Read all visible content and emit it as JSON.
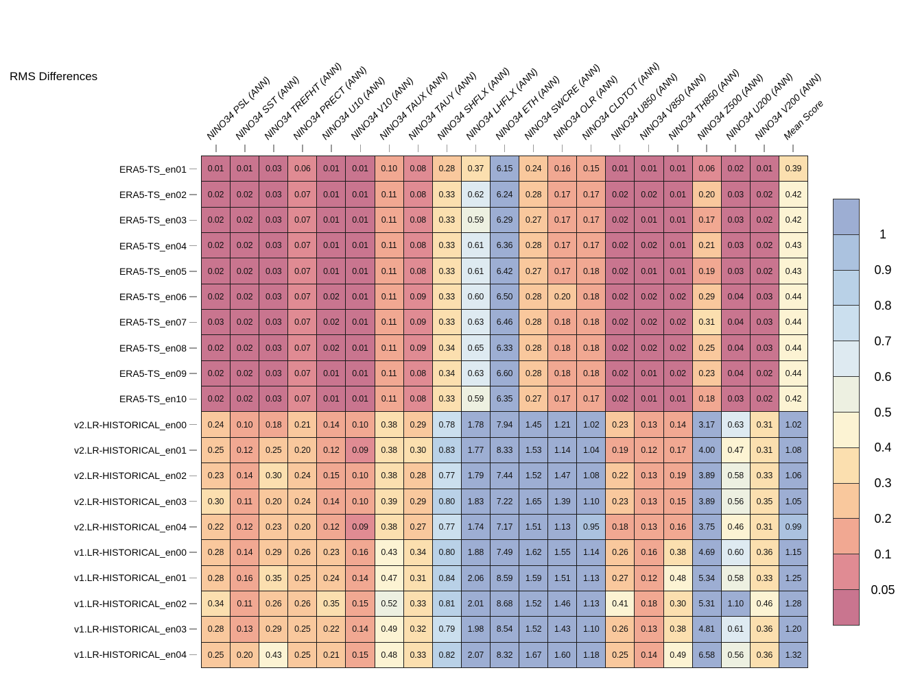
{
  "chart_data": {
    "type": "heatmap",
    "title": "RMS Differences",
    "columns": [
      "NINO34 PSL (ANN)",
      "NINO34 SST (ANN)",
      "NINO34 TREFHT (ANN)",
      "NINO34 PRECT (ANN)",
      "NINO34 U10 (ANN)",
      "NINO34 V10 (ANN)",
      "NINO34 TAUX (ANN)",
      "NINO34 TAUY (ANN)",
      "NINO34 SHFLX (ANN)",
      "NINO34 LHFLX (ANN)",
      "NINO34 ETH (ANN)",
      "NINO34 SWCRE (ANN)",
      "NINO34 OLR (ANN)",
      "NINO34 CLDTOT (ANN)",
      "NINO34 U850 (ANN)",
      "NINO34 V850 (ANN)",
      "NINO34 TH850 (ANN)",
      "NINO34 Z500 (ANN)",
      "NINO34 U200 (ANN)",
      "NINO34 V200 (ANN)",
      "Mean Score"
    ],
    "rows": [
      {
        "label": "ERA5-TS_en01",
        "values": [
          "0.01",
          "0.01",
          "0.03",
          "0.06",
          "0.01",
          "0.01",
          "0.10",
          "0.08",
          "0.28",
          "0.37",
          "6.15",
          "0.24",
          "0.16",
          "0.15",
          "0.01",
          "0.01",
          "0.01",
          "0.06",
          "0.02",
          "0.01",
          "0.39"
        ]
      },
      {
        "label": "ERA5-TS_en02",
        "values": [
          "0.02",
          "0.02",
          "0.03",
          "0.07",
          "0.01",
          "0.01",
          "0.11",
          "0.08",
          "0.33",
          "0.62",
          "6.24",
          "0.28",
          "0.17",
          "0.17",
          "0.02",
          "0.02",
          "0.01",
          "0.20",
          "0.03",
          "0.02",
          "0.42"
        ]
      },
      {
        "label": "ERA5-TS_en03",
        "values": [
          "0.02",
          "0.02",
          "0.03",
          "0.07",
          "0.01",
          "0.01",
          "0.11",
          "0.08",
          "0.33",
          "0.59",
          "6.29",
          "0.27",
          "0.17",
          "0.17",
          "0.02",
          "0.01",
          "0.01",
          "0.17",
          "0.03",
          "0.02",
          "0.42"
        ]
      },
      {
        "label": "ERA5-TS_en04",
        "values": [
          "0.02",
          "0.02",
          "0.03",
          "0.07",
          "0.01",
          "0.01",
          "0.11",
          "0.08",
          "0.33",
          "0.61",
          "6.36",
          "0.28",
          "0.17",
          "0.17",
          "0.02",
          "0.02",
          "0.01",
          "0.21",
          "0.03",
          "0.02",
          "0.43"
        ]
      },
      {
        "label": "ERA5-TS_en05",
        "values": [
          "0.02",
          "0.02",
          "0.03",
          "0.07",
          "0.01",
          "0.01",
          "0.11",
          "0.08",
          "0.33",
          "0.61",
          "6.42",
          "0.27",
          "0.17",
          "0.18",
          "0.02",
          "0.01",
          "0.01",
          "0.19",
          "0.03",
          "0.02",
          "0.43"
        ]
      },
      {
        "label": "ERA5-TS_en06",
        "values": [
          "0.02",
          "0.02",
          "0.03",
          "0.07",
          "0.02",
          "0.01",
          "0.11",
          "0.09",
          "0.33",
          "0.60",
          "6.50",
          "0.28",
          "0.20",
          "0.18",
          "0.02",
          "0.02",
          "0.02",
          "0.29",
          "0.04",
          "0.03",
          "0.44"
        ]
      },
      {
        "label": "ERA5-TS_en07",
        "values": [
          "0.03",
          "0.02",
          "0.03",
          "0.07",
          "0.02",
          "0.01",
          "0.11",
          "0.09",
          "0.33",
          "0.63",
          "6.46",
          "0.28",
          "0.18",
          "0.18",
          "0.02",
          "0.02",
          "0.02",
          "0.31",
          "0.04",
          "0.03",
          "0.44"
        ]
      },
      {
        "label": "ERA5-TS_en08",
        "values": [
          "0.02",
          "0.02",
          "0.03",
          "0.07",
          "0.02",
          "0.01",
          "0.11",
          "0.09",
          "0.34",
          "0.65",
          "6.33",
          "0.28",
          "0.18",
          "0.18",
          "0.02",
          "0.02",
          "0.02",
          "0.25",
          "0.04",
          "0.03",
          "0.44"
        ]
      },
      {
        "label": "ERA5-TS_en09",
        "values": [
          "0.02",
          "0.02",
          "0.03",
          "0.07",
          "0.01",
          "0.01",
          "0.11",
          "0.08",
          "0.34",
          "0.63",
          "6.60",
          "0.28",
          "0.18",
          "0.18",
          "0.02",
          "0.01",
          "0.02",
          "0.23",
          "0.04",
          "0.02",
          "0.44"
        ]
      },
      {
        "label": "ERA5-TS_en10",
        "values": [
          "0.02",
          "0.02",
          "0.03",
          "0.07",
          "0.01",
          "0.01",
          "0.11",
          "0.08",
          "0.33",
          "0.59",
          "6.35",
          "0.27",
          "0.17",
          "0.17",
          "0.02",
          "0.01",
          "0.01",
          "0.18",
          "0.03",
          "0.02",
          "0.42"
        ]
      },
      {
        "label": "v2.LR-HISTORICAL_en00",
        "values": [
          "0.24",
          "0.10",
          "0.18",
          "0.21",
          "0.14",
          "0.10",
          "0.38",
          "0.29",
          "0.78",
          "1.78",
          "7.94",
          "1.45",
          "1.21",
          "1.02",
          "0.23",
          "0.13",
          "0.14",
          "3.17",
          "0.63",
          "0.31",
          "1.02"
        ]
      },
      {
        "label": "v2.LR-HISTORICAL_en01",
        "values": [
          "0.25",
          "0.12",
          "0.25",
          "0.20",
          "0.12",
          "0.09",
          "0.38",
          "0.30",
          "0.83",
          "1.77",
          "8.33",
          "1.53",
          "1.14",
          "1.04",
          "0.19",
          "0.12",
          "0.17",
          "4.00",
          "0.47",
          "0.31",
          "1.08"
        ]
      },
      {
        "label": "v2.LR-HISTORICAL_en02",
        "values": [
          "0.23",
          "0.14",
          "0.30",
          "0.24",
          "0.15",
          "0.10",
          "0.38",
          "0.28",
          "0.77",
          "1.79",
          "7.44",
          "1.52",
          "1.47",
          "1.08",
          "0.22",
          "0.13",
          "0.19",
          "3.89",
          "0.58",
          "0.33",
          "1.06"
        ]
      },
      {
        "label": "v2.LR-HISTORICAL_en03",
        "values": [
          "0.30",
          "0.11",
          "0.20",
          "0.24",
          "0.14",
          "0.10",
          "0.39",
          "0.29",
          "0.80",
          "1.83",
          "7.22",
          "1.65",
          "1.39",
          "1.10",
          "0.23",
          "0.13",
          "0.15",
          "3.89",
          "0.56",
          "0.35",
          "1.05"
        ]
      },
      {
        "label": "v2.LR-HISTORICAL_en04",
        "values": [
          "0.22",
          "0.12",
          "0.23",
          "0.20",
          "0.12",
          "0.09",
          "0.38",
          "0.27",
          "0.77",
          "1.74",
          "7.17",
          "1.51",
          "1.13",
          "0.95",
          "0.18",
          "0.13",
          "0.16",
          "3.75",
          "0.46",
          "0.31",
          "0.99"
        ]
      },
      {
        "label": "v1.LR-HISTORICAL_en00",
        "values": [
          "0.28",
          "0.14",
          "0.29",
          "0.26",
          "0.23",
          "0.16",
          "0.43",
          "0.34",
          "0.80",
          "1.88",
          "7.49",
          "1.62",
          "1.55",
          "1.14",
          "0.26",
          "0.16",
          "0.38",
          "4.69",
          "0.60",
          "0.36",
          "1.15"
        ]
      },
      {
        "label": "v1.LR-HISTORICAL_en01",
        "values": [
          "0.28",
          "0.16",
          "0.35",
          "0.25",
          "0.24",
          "0.14",
          "0.47",
          "0.31",
          "0.84",
          "2.06",
          "8.59",
          "1.59",
          "1.51",
          "1.13",
          "0.27",
          "0.12",
          "0.48",
          "5.34",
          "0.58",
          "0.33",
          "1.25"
        ]
      },
      {
        "label": "v1.LR-HISTORICAL_en02",
        "values": [
          "0.34",
          "0.11",
          "0.26",
          "0.26",
          "0.35",
          "0.15",
          "0.52",
          "0.33",
          "0.81",
          "2.01",
          "8.68",
          "1.52",
          "1.46",
          "1.13",
          "0.41",
          "0.18",
          "0.30",
          "5.31",
          "1.10",
          "0.46",
          "1.28"
        ]
      },
      {
        "label": "v1.LR-HISTORICAL_en03",
        "values": [
          "0.28",
          "0.13",
          "0.29",
          "0.25",
          "0.22",
          "0.14",
          "0.49",
          "0.32",
          "0.79",
          "1.98",
          "8.54",
          "1.52",
          "1.43",
          "1.10",
          "0.26",
          "0.13",
          "0.38",
          "4.81",
          "0.61",
          "0.36",
          "1.20"
        ]
      },
      {
        "label": "v1.LR-HISTORICAL_en04",
        "values": [
          "0.25",
          "0.20",
          "0.43",
          "0.25",
          "0.21",
          "0.15",
          "0.48",
          "0.33",
          "0.82",
          "2.07",
          "8.32",
          "1.67",
          "1.60",
          "1.18",
          "0.25",
          "0.14",
          "0.49",
          "6.58",
          "0.56",
          "0.36",
          "1.32"
        ]
      }
    ],
    "colorbar": {
      "tick_labels_top_to_bottom": [
        "1",
        "0.9",
        "0.8",
        "0.7",
        "0.6",
        "0.5",
        "0.4",
        "0.3",
        "0.2",
        "0.1",
        "0.05"
      ],
      "thresholds_ascending": [
        0.05,
        0.1,
        0.2,
        0.3,
        0.4,
        0.5,
        0.6,
        0.7,
        0.8,
        0.9,
        1
      ],
      "palette_low_to_high": [
        "#c9758f",
        "#e08b93",
        "#f1a892",
        "#f9c89d",
        "#fbdfaf",
        "#fcf3d3",
        "#edf0e1",
        "#deeaf1",
        "#cbdfee",
        "#b9d1e7",
        "#abc2df",
        "#9daed3"
      ]
    },
    "legend_position": "right",
    "grid": true
  }
}
